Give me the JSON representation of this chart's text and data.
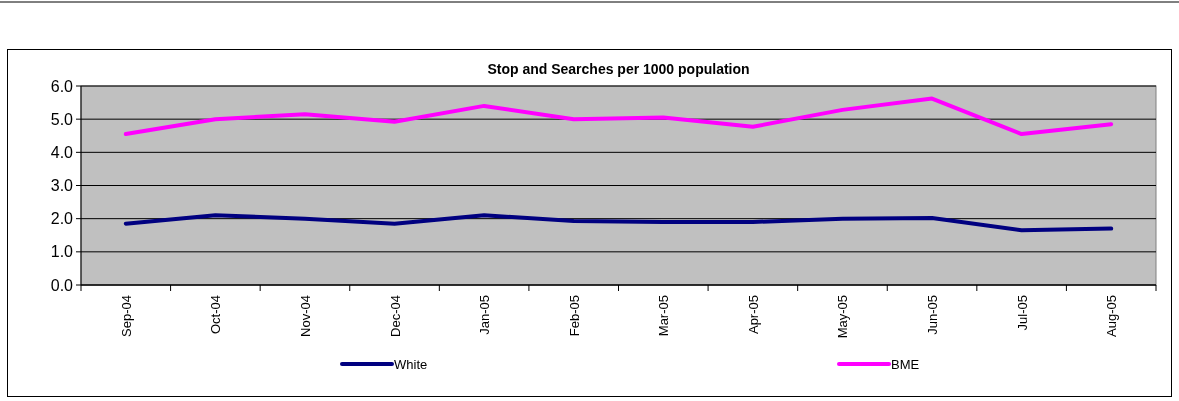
{
  "chart_data": {
    "type": "line",
    "title": "Stop and Searches per 1000 population",
    "categories": [
      "Sep-04",
      "Oct-04",
      "Nov-04",
      "Dec-04",
      "Jan-05",
      "Feb-05",
      "Mar-05",
      "Apr-05",
      "May-05",
      "Jun-05",
      "Jul-05",
      "Aug-05"
    ],
    "series": [
      {
        "name": "White",
        "color": "#000080",
        "values": [
          1.85,
          2.1,
          2.0,
          1.85,
          2.1,
          1.93,
          1.9,
          1.9,
          2.0,
          2.02,
          1.65,
          1.7
        ]
      },
      {
        "name": "BME",
        "color": "#ff00ff",
        "values": [
          4.55,
          5.0,
          5.15,
          4.92,
          5.4,
          5.0,
          5.05,
          4.77,
          5.28,
          5.62,
          4.55,
          4.85
        ]
      }
    ],
    "ylim": [
      0,
      6
    ],
    "yticks": [
      {
        "value": 0,
        "label": "0.0"
      },
      {
        "value": 1,
        "label": "1.0"
      },
      {
        "value": 2,
        "label": "2.0"
      },
      {
        "value": 3,
        "label": "3.0"
      },
      {
        "value": 4,
        "label": "4.0"
      },
      {
        "value": 5,
        "label": "5.0"
      },
      {
        "value": 6,
        "label": "6.0"
      }
    ],
    "grid": "y",
    "legend": "bottom",
    "marker": "none",
    "line_style": "solid"
  }
}
